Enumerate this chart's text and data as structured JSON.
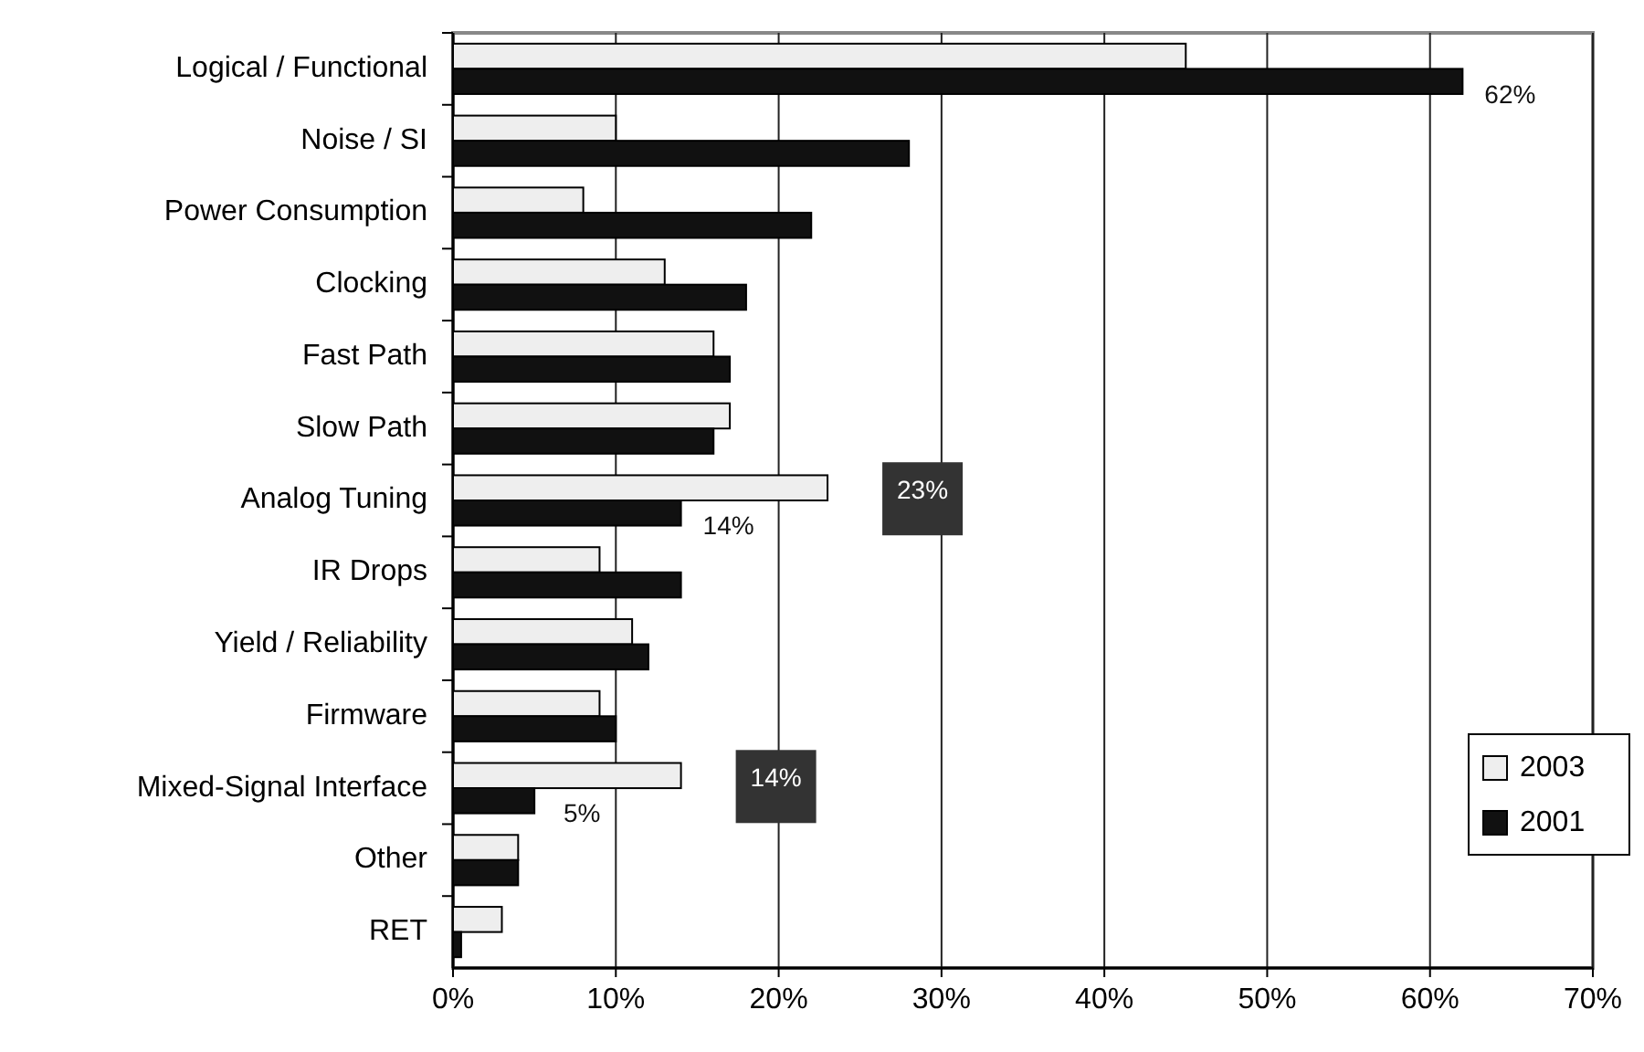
{
  "chart_data": {
    "type": "bar",
    "orientation": "horizontal",
    "categories": [
      "Logical / Functional",
      "Noise / SI",
      "Power Consumption",
      "Clocking",
      "Fast Path",
      "Slow Path",
      "Analog Tuning",
      "IR Drops",
      "Yield / Reliability",
      "Firmware",
      "Mixed-Signal Interface",
      "Other",
      "RET"
    ],
    "series": [
      {
        "name": "2003",
        "color": "#eeeeee",
        "values": [
          45,
          10,
          8,
          13,
          16,
          17,
          23,
          9,
          11,
          9,
          14,
          4,
          3
        ],
        "value_labels": [
          null,
          null,
          null,
          null,
          null,
          null,
          "23%",
          null,
          null,
          null,
          "14%",
          null,
          null
        ]
      },
      {
        "name": "2001",
        "color": "#111111",
        "values": [
          62,
          28,
          22,
          18,
          17,
          16,
          14,
          14,
          12,
          10,
          5,
          4,
          0.5
        ],
        "value_labels": [
          "62%",
          null,
          null,
          null,
          null,
          null,
          "14%",
          null,
          null,
          null,
          "5%",
          null,
          null
        ]
      }
    ],
    "xlim": [
      0,
      70
    ],
    "xticks": [
      {
        "value": 0,
        "label": "0%"
      },
      {
        "value": 10,
        "label": "10%"
      },
      {
        "value": 20,
        "label": "20%"
      },
      {
        "value": 30,
        "label": "30%"
      },
      {
        "value": 40,
        "label": "40%"
      },
      {
        "value": 50,
        "label": "50%"
      },
      {
        "value": 60,
        "label": "60%"
      },
      {
        "value": 70,
        "label": "70%"
      }
    ],
    "grid": "x",
    "legend": "right"
  }
}
